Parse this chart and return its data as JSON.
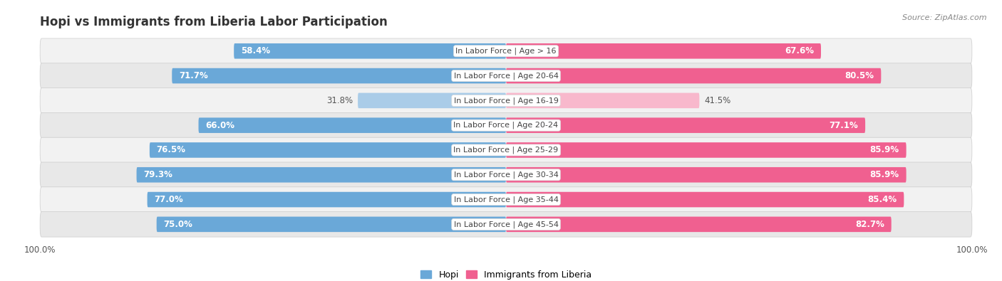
{
  "title": "Hopi vs Immigrants from Liberia Labor Participation",
  "source": "Source: ZipAtlas.com",
  "categories": [
    "In Labor Force | Age > 16",
    "In Labor Force | Age 20-64",
    "In Labor Force | Age 16-19",
    "In Labor Force | Age 20-24",
    "In Labor Force | Age 25-29",
    "In Labor Force | Age 30-34",
    "In Labor Force | Age 35-44",
    "In Labor Force | Age 45-54"
  ],
  "hopi_values": [
    58.4,
    71.7,
    31.8,
    66.0,
    76.5,
    79.3,
    77.0,
    75.0
  ],
  "liberia_values": [
    67.6,
    80.5,
    41.5,
    77.1,
    85.9,
    85.9,
    85.4,
    82.7
  ],
  "hopi_color": "#6aa8d8",
  "hopi_color_light": "#aacce8",
  "liberia_color": "#f06090",
  "liberia_color_light": "#f8b8cc",
  "row_colors": [
    "#f2f2f2",
    "#e8e8e8",
    "#f2f2f2",
    "#e8e8e8",
    "#f2f2f2",
    "#e8e8e8",
    "#f2f2f2",
    "#e8e8e8"
  ],
  "bar_height": 0.62,
  "bg_color": "#ffffff",
  "label_fontsize": 8.5,
  "title_fontsize": 12,
  "legend_fontsize": 9,
  "max_val": 100.0,
  "light_row_index": 2
}
